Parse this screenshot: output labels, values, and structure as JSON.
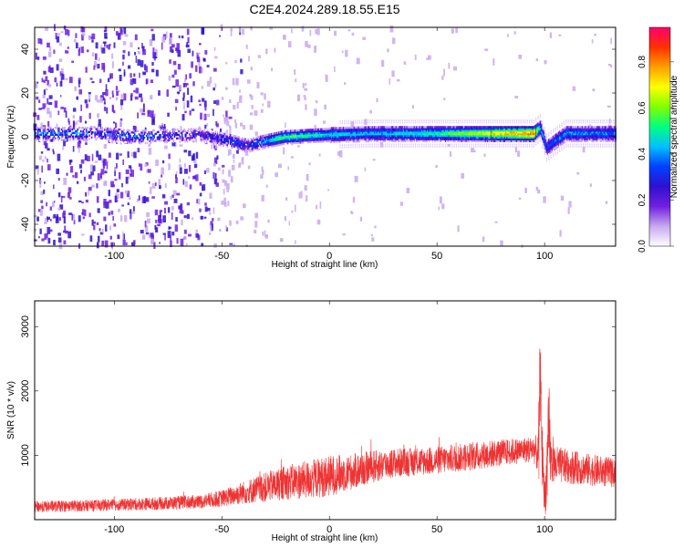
{
  "title": "C2E4.2024.289.18.55.E15",
  "chart_data": [
    {
      "type": "heatmap",
      "xlabel": "Height of straight line (km)",
      "ylabel": "Frequency (Hz)",
      "xlim": [
        -137,
        133
      ],
      "ylim": [
        -50,
        50
      ],
      "x_ticks": [
        "-100",
        "-50",
        "0",
        "50",
        "100"
      ],
      "y_ticks": [
        "-40",
        "-20",
        "0",
        "20",
        "40"
      ],
      "colorbar": {
        "label": "Normalized spectral amplitude",
        "range": [
          0,
          0.95
        ],
        "ticks": [
          "0.0",
          "0.2",
          "0.4",
          "0.6",
          "0.8"
        ],
        "colormap": [
          "#ffffff",
          "#c8a8f0",
          "#7020e0",
          "#3010d0",
          "#0040ff",
          "#00c0ff",
          "#00ff80",
          "#80ff00",
          "#ffff00",
          "#ffa000",
          "#ff3000",
          "#ff0070"
        ]
      },
      "signal_band": [
        {
          "x": -112,
          "f": 2.0,
          "amp": 0.3
        },
        {
          "x": -90,
          "f": 0.0,
          "amp": 0.4
        },
        {
          "x": -60,
          "f": 1.0,
          "amp": 0.25
        },
        {
          "x": -45,
          "f": -2.0,
          "amp": 0.35
        },
        {
          "x": -38,
          "f": -4.0,
          "amp": 0.3
        },
        {
          "x": -30,
          "f": -2.0,
          "amp": 0.45
        },
        {
          "x": -20,
          "f": 0.0,
          "amp": 0.6
        },
        {
          "x": 0,
          "f": 1.0,
          "amp": 0.5
        },
        {
          "x": 20,
          "f": 1.5,
          "amp": 0.45
        },
        {
          "x": 50,
          "f": 1.5,
          "amp": 0.55
        },
        {
          "x": 75,
          "f": 1.5,
          "amp": 0.75
        },
        {
          "x": 95,
          "f": 1.5,
          "amp": 0.9
        },
        {
          "x": 98,
          "f": 4.0,
          "amp": 0.5
        },
        {
          "x": 101,
          "f": -5.0,
          "amp": 0.35
        },
        {
          "x": 110,
          "f": 1.5,
          "amp": 0.45
        },
        {
          "x": 133,
          "f": 1.5,
          "amp": 0.4
        }
      ]
    },
    {
      "type": "line",
      "xlabel": "Height of straight line (km)",
      "ylabel": "SNR (10 * v/v)",
      "xlim": [
        -137,
        133
      ],
      "ylim": [
        0,
        3400
      ],
      "x_ticks": [
        "-100",
        "-50",
        "0",
        "50",
        "100"
      ],
      "y_ticks": [
        "1000",
        "2000",
        "3000"
      ],
      "color": "#ee3333",
      "envelope": {
        "x": [
          -137,
          -110,
          -80,
          -60,
          -50,
          -40,
          -30,
          -20,
          -10,
          0,
          10,
          20,
          30,
          40,
          50,
          60,
          70,
          80,
          90,
          95,
          97,
          98,
          99,
          100,
          101,
          102,
          103,
          105,
          110,
          120,
          133
        ],
        "mean": [
          200,
          220,
          250,
          280,
          330,
          420,
          500,
          580,
          620,
          680,
          740,
          820,
          880,
          900,
          920,
          960,
          1000,
          1040,
          1080,
          1100,
          1000,
          1500,
          1050,
          300,
          700,
          1300,
          900,
          850,
          830,
          780,
          720
        ],
        "spread": [
          90,
          90,
          100,
          110,
          130,
          180,
          230,
          270,
          300,
          320,
          280,
          260,
          230,
          220,
          220,
          220,
          220,
          210,
          200,
          220,
          300,
          1700,
          400,
          300,
          500,
          900,
          350,
          300,
          270,
          250,
          230
        ]
      }
    }
  ]
}
